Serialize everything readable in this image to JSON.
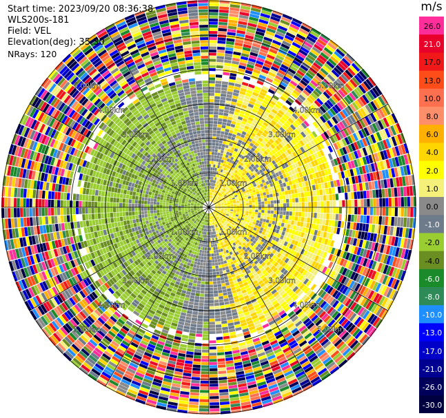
{
  "meta": {
    "start_time": "Start time: 2023/09/20 08:36:38",
    "instrument": "WLS200s-181",
    "field": "Field: VEL",
    "elevation": "Elevation(deg): 35.30",
    "nrays": "NRays: 120"
  },
  "colorbar": {
    "unit": "m/s",
    "bands": [
      {
        "label": "26.0",
        "color": "#ff2e9a",
        "text": "#000000"
      },
      {
        "label": "21.0",
        "color": "#e8002a",
        "text": "#ffffff"
      },
      {
        "label": "17.0",
        "color": "#f01818",
        "text": "#000000"
      },
      {
        "label": "13.0",
        "color": "#ff4d1a",
        "text": "#000000"
      },
      {
        "label": "10.0",
        "color": "#ff7050",
        "text": "#000000"
      },
      {
        "label": "8.0",
        "color": "#ff8f6a",
        "text": "#000000"
      },
      {
        "label": "6.0",
        "color": "#ffb000",
        "text": "#000000"
      },
      {
        "label": "4.0",
        "color": "#ffd500",
        "text": "#000000"
      },
      {
        "label": "2.0",
        "color": "#ffff00",
        "text": "#000000"
      },
      {
        "label": "1.0",
        "color": "#f5f07a",
        "text": "#000000"
      },
      {
        "label": "0.0",
        "color": "#8a8a8a",
        "text": "#000000"
      },
      {
        "label": "-1.0",
        "color": "#6e7b8b",
        "text": "#ffffff"
      },
      {
        "label": "-2.0",
        "color": "#9acd32",
        "text": "#000000"
      },
      {
        "label": "-4.0",
        "color": "#6b8e23",
        "text": "#000000"
      },
      {
        "label": "-6.0",
        "color": "#1a8a2a",
        "text": "#ffffff"
      },
      {
        "label": "-8.0",
        "color": "#2e8b57",
        "text": "#ffffff"
      },
      {
        "label": "-10.0",
        "color": "#1f8fff",
        "text": "#ffffff"
      },
      {
        "label": "-13.0",
        "color": "#0000ff",
        "text": "#ffffff"
      },
      {
        "label": "-17.0",
        "color": "#0000c8",
        "text": "#ffffff"
      },
      {
        "label": "-21.0",
        "color": "#000090",
        "text": "#ffffff"
      },
      {
        "label": "-26.0",
        "color": "#00005a",
        "text": "#ffffff"
      },
      {
        "label": "-30.0",
        "color": "#000040",
        "text": "#ffffff"
      }
    ]
  },
  "chart_data": {
    "type": "heatmap",
    "title": "Start time: 2023/09/20 08:36:38",
    "field": "VEL",
    "units": "m/s",
    "nrays": 120,
    "max_range_km": 6.0,
    "range_rings_km": [
      1.0,
      2.0,
      3.0,
      4.0,
      5.0,
      6.0
    ],
    "ring_labels": [
      "1.00km",
      "2.00km",
      "3.00km",
      "4.00km",
      "5.00km"
    ],
    "spoke_angles_deg": [
      0,
      30,
      60,
      90,
      120,
      150,
      180,
      210,
      240,
      270,
      300,
      330
    ],
    "color_levels": [
      -30.0,
      -26.0,
      -21.0,
      -17.0,
      -13.0,
      -10.0,
      -8.0,
      -6.0,
      -4.0,
      -2.0,
      -1.0,
      0.0,
      1.0,
      2.0,
      4.0,
      6.0,
      8.0,
      10.0,
      13.0,
      17.0,
      21.0,
      26.0
    ],
    "pattern": "Approaching (negative, green) velocities on west half, receding (positive, yellow) on east half within ~3.5 km; noisy multicolor clutter beyond ~4 km"
  }
}
